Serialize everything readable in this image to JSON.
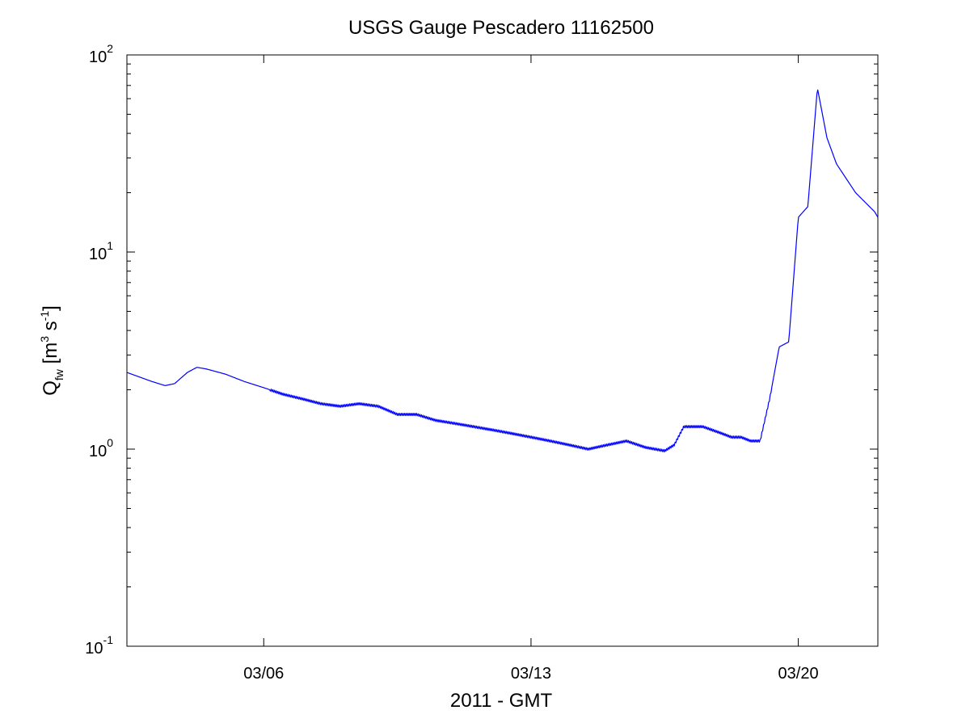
{
  "chart_data": {
    "type": "line",
    "title": "USGS Gauge Pescadero 11162500",
    "xlabel": "2011 - GMT",
    "ylabel": {
      "main": "Q",
      "subscript": "fw",
      "units_open": " [m",
      "units_sup1": "3",
      "units_mid": " s",
      "units_sup2": "-1",
      "units_close": "]"
    },
    "yscale": "log",
    "ylim": [
      0.1,
      100
    ],
    "y_ticks": [
      {
        "value": 0.1,
        "base": "10",
        "exp": "-1"
      },
      {
        "value": 1,
        "base": "10",
        "exp": "0"
      },
      {
        "value": 10,
        "base": "10",
        "exp": "1"
      },
      {
        "value": 100,
        "base": "10",
        "exp": "2"
      }
    ],
    "x_domain": [
      "2011-03-02T10:00",
      "2011-03-22T02:00"
    ],
    "x_ticks": [
      {
        "date": "2011-03-06",
        "label": "03/06"
      },
      {
        "date": "2011-03-13",
        "label": "03/13"
      },
      {
        "date": "2011-03-20",
        "label": "03/20"
      }
    ],
    "grid": false,
    "line_color": "#0000ff",
    "series": [
      {
        "x": [
          "2011-03-02T10:00",
          "2011-03-03T02:00",
          "2011-03-03T10:00",
          "2011-03-03T16:00",
          "2011-03-04T00:00",
          "2011-03-04T06:00",
          "2011-03-04T12:00",
          "2011-03-05T00:00",
          "2011-03-05T12:00",
          "2011-03-06T00:00",
          "2011-03-06T12:00",
          "2011-03-07T00:00",
          "2011-03-07T12:00",
          "2011-03-08T00:00",
          "2011-03-08T12:00",
          "2011-03-09T00:00",
          "2011-03-09T12:00",
          "2011-03-10T00:00",
          "2011-03-10T12:00",
          "2011-03-11T00:00",
          "2011-03-11T12:00",
          "2011-03-12T00:00",
          "2011-03-12T12:00",
          "2011-03-13T00:00",
          "2011-03-13T12:00",
          "2011-03-14T00:00",
          "2011-03-14T12:00",
          "2011-03-15T00:00",
          "2011-03-15T12:00",
          "2011-03-16T00:00",
          "2011-03-16T12:00",
          "2011-03-16T18:00",
          "2011-03-17T00:00",
          "2011-03-17T12:00",
          "2011-03-18T00:00",
          "2011-03-18T06:00",
          "2011-03-18T12:00",
          "2011-03-18T18:00",
          "2011-03-19T00:00",
          "2011-03-19T06:00",
          "2011-03-19T12:00",
          "2011-03-19T18:00",
          "2011-03-20T00:00",
          "2011-03-20T06:00",
          "2011-03-20T12:00",
          "2011-03-20T18:00",
          "2011-03-21T00:00",
          "2011-03-21T12:00",
          "2011-03-22T00:00",
          "2011-03-22T02:00"
        ],
        "y": [
          2.45,
          2.2,
          2.1,
          2.15,
          2.45,
          2.6,
          2.55,
          2.4,
          2.2,
          2.05,
          1.9,
          1.8,
          1.7,
          1.65,
          1.7,
          1.65,
          1.5,
          1.5,
          1.4,
          1.35,
          1.3,
          1.25,
          1.2,
          1.15,
          1.1,
          1.05,
          1.0,
          1.05,
          1.1,
          1.02,
          0.98,
          1.05,
          1.3,
          1.3,
          1.2,
          1.15,
          1.15,
          1.1,
          1.1,
          1.8,
          3.3,
          3.5,
          15.0,
          17.0,
          68.0,
          38.0,
          28.0,
          20.0,
          16.0,
          15.0
        ]
      }
    ]
  }
}
